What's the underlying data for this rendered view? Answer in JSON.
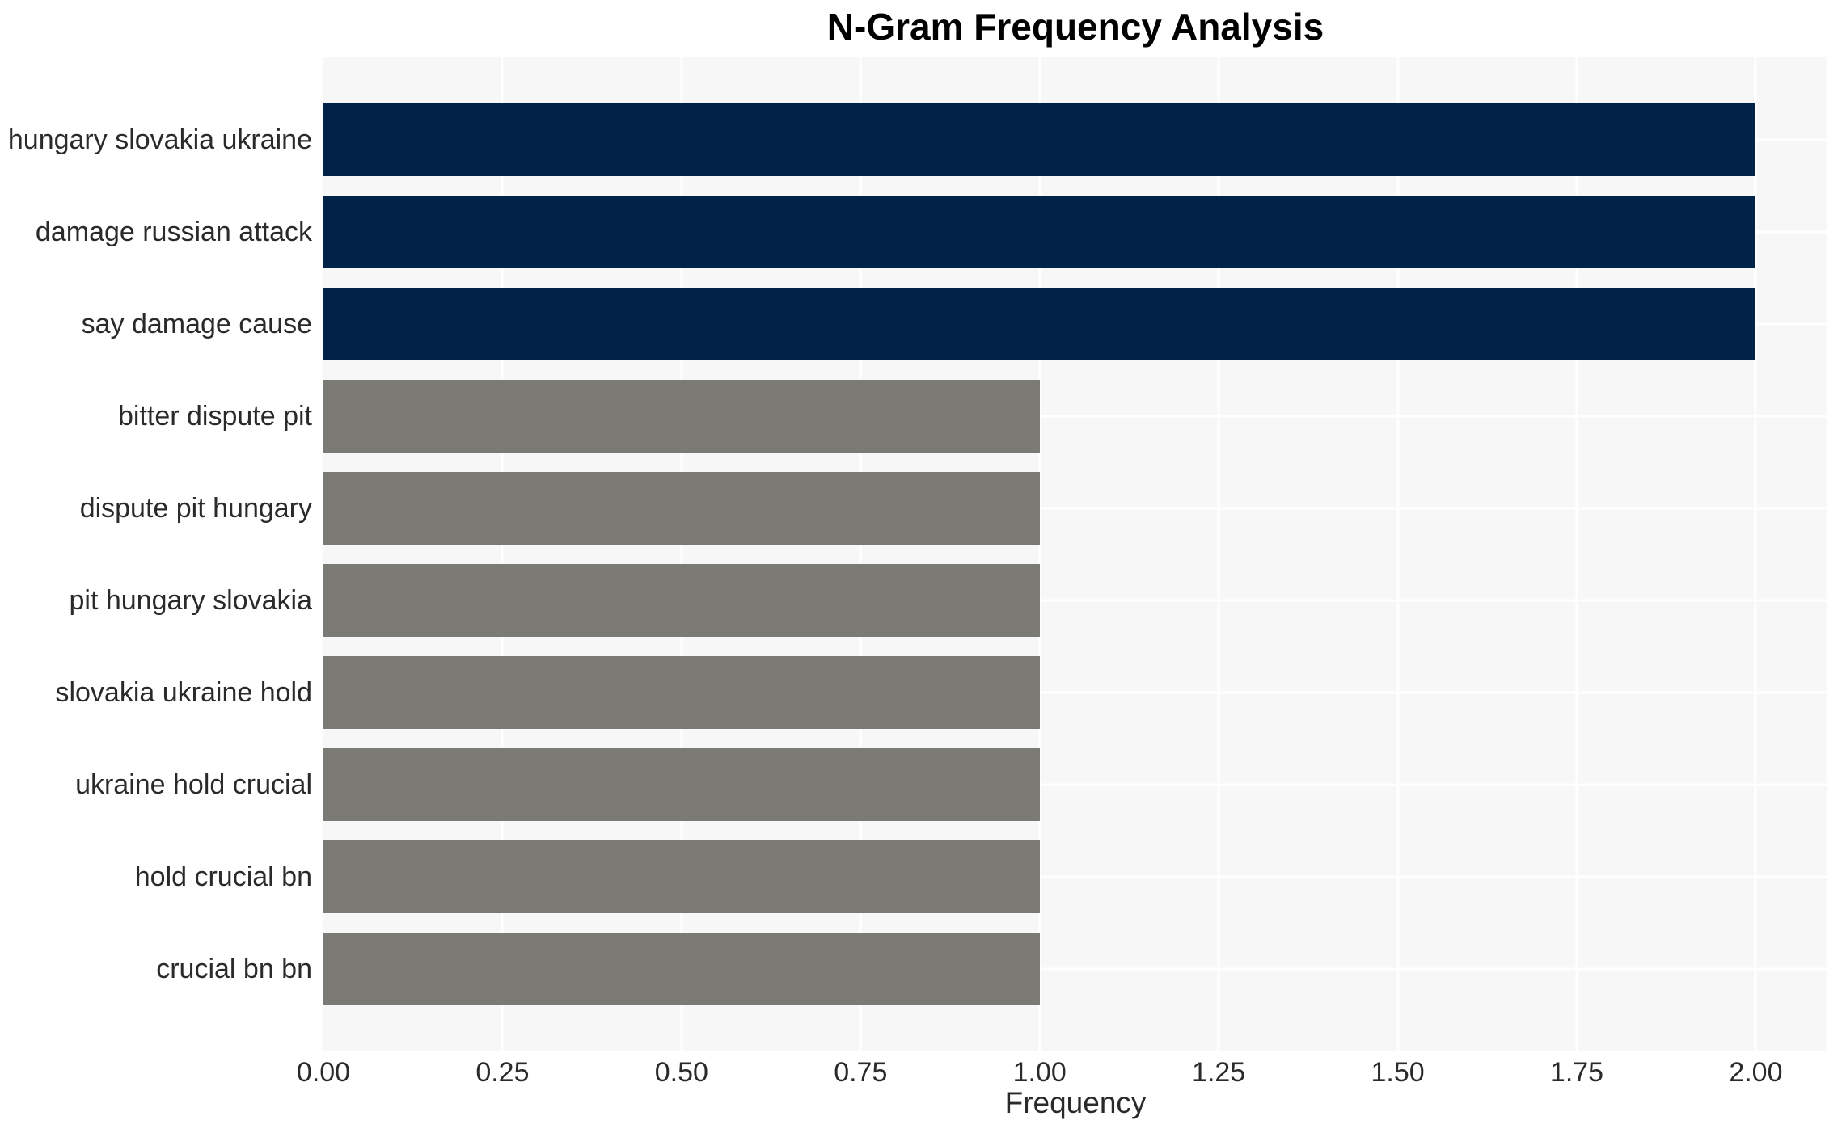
{
  "chart_data": {
    "type": "bar",
    "orientation": "horizontal",
    "title": "N-Gram Frequency Analysis",
    "xlabel": "Frequency",
    "ylabel": "",
    "categories": [
      "hungary slovakia ukraine",
      "damage russian attack",
      "say damage cause",
      "bitter dispute pit",
      "dispute pit hungary",
      "pit hungary slovakia",
      "slovakia ukraine hold",
      "ukraine hold crucial",
      "hold crucial bn",
      "crucial bn bn"
    ],
    "values": [
      2,
      2,
      2,
      1,
      1,
      1,
      1,
      1,
      1,
      1
    ],
    "bar_colors": [
      "#022348",
      "#022348",
      "#022348",
      "#7b7a75",
      "#7b7a75",
      "#7b7a75",
      "#7b7a75",
      "#7b7a75",
      "#7b7a75",
      "#7b7a75"
    ],
    "highlight_count": 3,
    "colors": {
      "highlight": "#022348",
      "default": "#7b7a75",
      "plot_background": "#f7f7f7",
      "grid": "#ffffff",
      "text": "#2a2a2a",
      "title": "#000000"
    },
    "xlim": [
      0,
      2.1
    ],
    "x_tick_values": [
      0,
      0.25,
      0.5,
      0.75,
      1.0,
      1.25,
      1.5,
      1.75,
      2.0
    ],
    "x_tick_labels": [
      "0.00",
      "0.25",
      "0.50",
      "0.75",
      "1.00",
      "1.25",
      "1.50",
      "1.75",
      "2.00"
    ],
    "grid": true,
    "legend_position": "none"
  }
}
